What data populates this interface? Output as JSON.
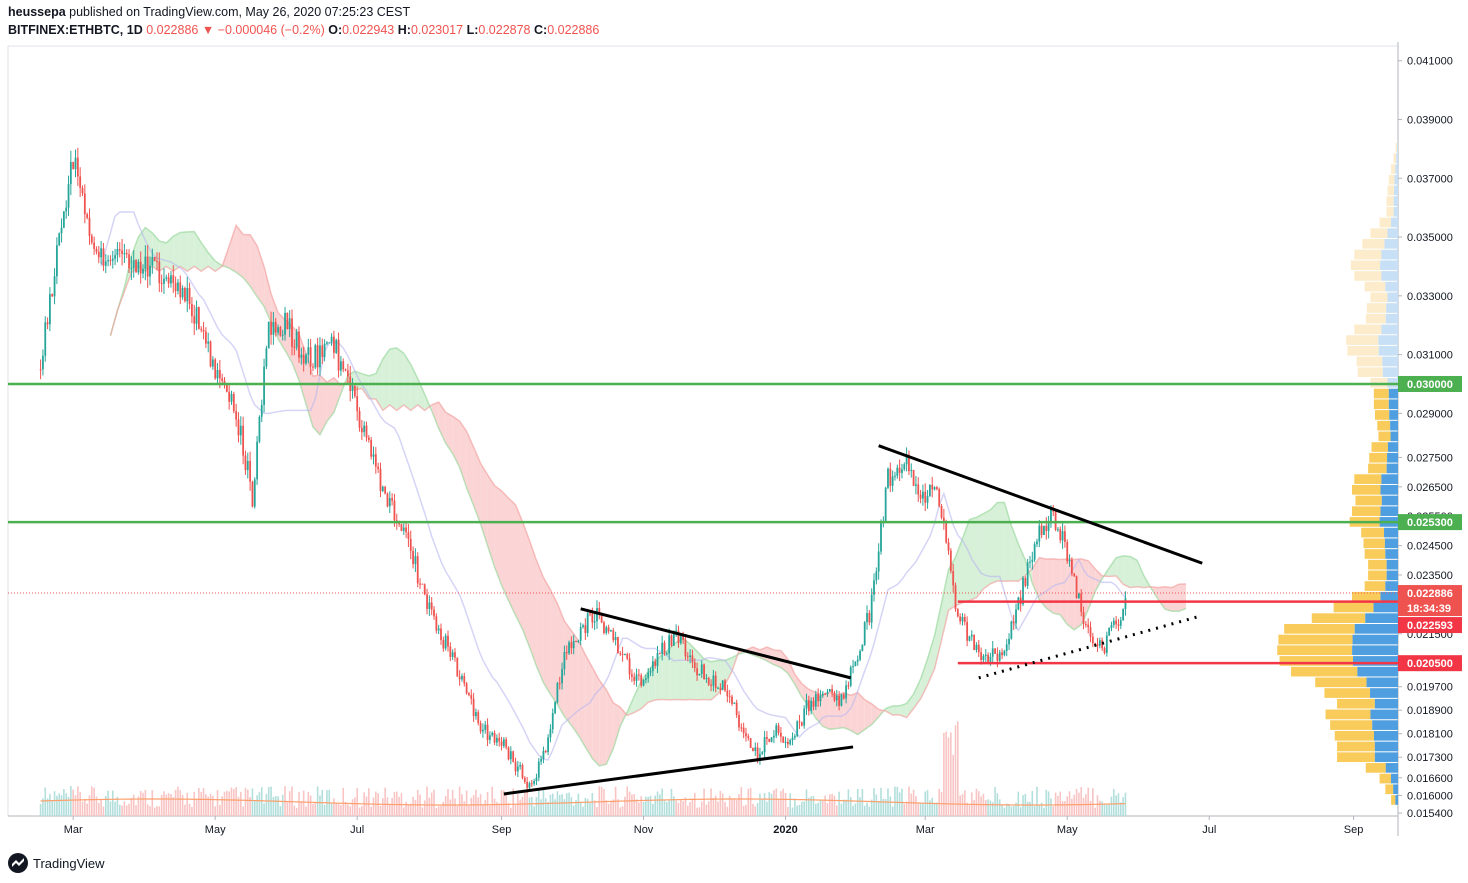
{
  "header": {
    "author": "heussepa",
    "published_text": "published on TradingView.com, May 26, 2020 07:25:23 CEST",
    "symbol": "BITFINEX:ETHBTC, 1D",
    "last": "0.022886",
    "change_arrow": "▼",
    "change": "−0.000046 (−0.2%)",
    "o_label": "O:",
    "o_value": "0.022943",
    "h_label": "H:",
    "h_value": "0.023017",
    "l_label": "L:",
    "l_value": "0.022878",
    "c_label": "C:",
    "c_value": "0.022886"
  },
  "footer": {
    "brand": "TradingView"
  },
  "colors": {
    "up": "#26a69a",
    "down": "#ef5350",
    "green_line": "#4caf50",
    "red_line": "#f23645",
    "cloud_red": "#fbd5d5",
    "cloud_green": "#d7f0d8",
    "kijun": "#b9b7f0",
    "vp_yellow": "#f9cb5b",
    "vp_blue": "#4f9fe0",
    "vp_yellow_light": "#fdeccb",
    "vp_blue_light": "#c7e0f5"
  },
  "chart_data": {
    "type": "candlestick",
    "x_ticks": [
      "Mar",
      "May",
      "Jul",
      "Sep",
      "Nov",
      "2020",
      "Mar",
      "May",
      "Jul",
      "Sep"
    ],
    "y_ticks": [
      "0.041000",
      "0.039000",
      "0.037000",
      "0.035000",
      "0.033000",
      "0.031000",
      "0.029000",
      "0.027500",
      "0.026500",
      "0.025500",
      "0.024500",
      "0.023500",
      "0.021500",
      "0.019700",
      "0.018900",
      "0.018100",
      "0.017300",
      "0.016600",
      "0.016000",
      "0.015400"
    ],
    "ylim": [
      0.0153,
      0.0415
    ],
    "price_labels": [
      {
        "value": 0.03,
        "text": "0.030000",
        "color": "#4caf50"
      },
      {
        "value": 0.0253,
        "text": "0.025300",
        "color": "#4caf50"
      },
      {
        "value": 0.022886,
        "text": "0.022886",
        "color": "#ef5350"
      },
      {
        "value": 0.0225,
        "text": "18:34:39",
        "color": "#ef5350"
      },
      {
        "value": 0.022593,
        "text": "0.022593",
        "color": "#f23645"
      },
      {
        "value": 0.0205,
        "text": "0.020500",
        "color": "#f23645"
      }
    ],
    "horizontal_levels": [
      {
        "value": 0.03,
        "color": "#4caf50"
      },
      {
        "value": 0.0253,
        "color": "#4caf50"
      },
      {
        "value": 0.022593,
        "color": "#f23645"
      },
      {
        "value": 0.0205,
        "color": "#f23645"
      }
    ],
    "price_path": [
      [
        "2019-02-15",
        0.0305
      ],
      [
        "2019-02-22",
        0.0345
      ],
      [
        "2019-03-01",
        0.0375
      ],
      [
        "2019-03-08",
        0.0352
      ],
      [
        "2019-03-15",
        0.0342
      ],
      [
        "2019-03-22",
        0.0348
      ],
      [
        "2019-03-29",
        0.034
      ],
      [
        "2019-04-05",
        0.0338
      ],
      [
        "2019-04-12",
        0.0335
      ],
      [
        "2019-04-19",
        0.0328
      ],
      [
        "2019-04-26",
        0.0318
      ],
      [
        "2019-05-03",
        0.0298
      ],
      [
        "2019-05-10",
        0.029
      ],
      [
        "2019-05-17",
        0.0262
      ],
      [
        "2019-05-24",
        0.0318
      ],
      [
        "2019-05-31",
        0.032
      ],
      [
        "2019-06-07",
        0.0312
      ],
      [
        "2019-06-14",
        0.0308
      ],
      [
        "2019-06-21",
        0.0313
      ],
      [
        "2019-06-28",
        0.0298
      ],
      [
        "2019-07-05",
        0.0282
      ],
      [
        "2019-07-12",
        0.0262
      ],
      [
        "2019-07-19",
        0.0255
      ],
      [
        "2019-07-26",
        0.0238
      ],
      [
        "2019-08-02",
        0.022
      ],
      [
        "2019-08-09",
        0.021
      ],
      [
        "2019-08-16",
        0.0198
      ],
      [
        "2019-08-23",
        0.0182
      ],
      [
        "2019-08-30",
        0.018
      ],
      [
        "2019-09-06",
        0.0172
      ],
      [
        "2019-09-13",
        0.0163
      ],
      [
        "2019-09-20",
        0.0175
      ],
      [
        "2019-09-27",
        0.0205
      ],
      [
        "2019-10-04",
        0.0215
      ],
      [
        "2019-10-11",
        0.0222
      ],
      [
        "2019-10-18",
        0.0215
      ],
      [
        "2019-10-25",
        0.0205
      ],
      [
        "2019-11-01",
        0.0198
      ],
      [
        "2019-11-08",
        0.0208
      ],
      [
        "2019-11-15",
        0.0214
      ],
      [
        "2019-11-22",
        0.0205
      ],
      [
        "2019-11-29",
        0.02
      ],
      [
        "2019-12-06",
        0.0198
      ],
      [
        "2019-12-13",
        0.0182
      ],
      [
        "2019-12-20",
        0.0175
      ],
      [
        "2019-12-27",
        0.0182
      ],
      [
        "2020-01-03",
        0.0178
      ],
      [
        "2020-01-10",
        0.019
      ],
      [
        "2020-01-17",
        0.0196
      ],
      [
        "2020-01-24",
        0.0192
      ],
      [
        "2020-01-31",
        0.0205
      ],
      [
        "2020-02-07",
        0.0225
      ],
      [
        "2020-02-14",
        0.0268
      ],
      [
        "2020-02-21",
        0.0274
      ],
      [
        "2020-02-28",
        0.0262
      ],
      [
        "2020-03-07",
        0.0262
      ],
      [
        "2020-03-14",
        0.0225
      ],
      [
        "2020-03-21",
        0.0212
      ],
      [
        "2020-03-28",
        0.0207
      ],
      [
        "2020-04-04",
        0.021
      ],
      [
        "2020-04-11",
        0.0228
      ],
      [
        "2020-04-18",
        0.0248
      ],
      [
        "2020-04-25",
        0.0255
      ],
      [
        "2020-05-02",
        0.024
      ],
      [
        "2020-05-09",
        0.0215
      ],
      [
        "2020-05-16",
        0.021
      ],
      [
        "2020-05-23",
        0.022
      ],
      [
        "2020-05-26",
        0.022886
      ]
    ]
  }
}
